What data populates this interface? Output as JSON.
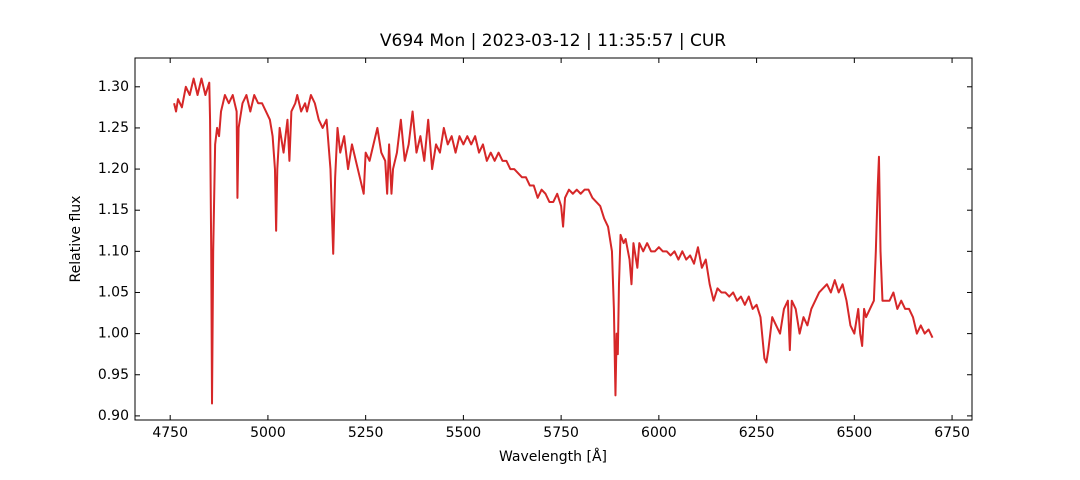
{
  "chart_data": {
    "type": "line",
    "title": "V694 Mon | 2023-03-12 | 11:35:57 | CUR",
    "xlabel": "Wavelength [Å]",
    "ylabel": "Relative flux",
    "color": "#d62728",
    "xlim": [
      4660,
      6801
    ],
    "ylim": [
      0.895,
      1.335
    ],
    "xticks": [
      4750,
      5000,
      5250,
      5500,
      5750,
      6000,
      6250,
      6500,
      6750
    ],
    "yticks": [
      {
        "value": 0.9,
        "label": "0.90"
      },
      0.95,
      {
        "value": 1.0,
        "label": "1.00"
      },
      1.05,
      {
        "value": 1.1,
        "label": "1.10"
      },
      1.15,
      {
        "value": 1.2,
        "label": "1.20"
      },
      1.25,
      {
        "value": 1.3,
        "label": "1.30"
      }
    ],
    "x": [
      4760,
      4765,
      4770,
      4780,
      4790,
      4800,
      4810,
      4820,
      4830,
      4840,
      4850,
      4852,
      4855,
      4857,
      4860,
      4865,
      4870,
      4875,
      4880,
      4890,
      4900,
      4910,
      4920,
      4922,
      4925,
      4935,
      4945,
      4955,
      4965,
      4975,
      4985,
      4995,
      5005,
      5012,
      5018,
      5021,
      5024,
      5030,
      5040,
      5050,
      5055,
      5060,
      5070,
      5075,
      5085,
      5095,
      5100,
      5110,
      5120,
      5130,
      5140,
      5150,
      5160,
      5167,
      5172,
      5178,
      5185,
      5195,
      5205,
      5215,
      5225,
      5235,
      5245,
      5250,
      5260,
      5270,
      5280,
      5290,
      5300,
      5305,
      5310,
      5316,
      5320,
      5330,
      5340,
      5350,
      5360,
      5370,
      5380,
      5390,
      5400,
      5410,
      5420,
      5430,
      5440,
      5450,
      5460,
      5470,
      5480,
      5490,
      5500,
      5510,
      5520,
      5530,
      5540,
      5550,
      5560,
      5570,
      5580,
      5590,
      5600,
      5610,
      5620,
      5630,
      5640,
      5650,
      5660,
      5670,
      5680,
      5690,
      5700,
      5710,
      5720,
      5730,
      5740,
      5750,
      5755,
      5760,
      5770,
      5780,
      5790,
      5800,
      5810,
      5820,
      5830,
      5840,
      5850,
      5860,
      5870,
      5880,
      5885,
      5889,
      5892,
      5895,
      5898,
      5902,
      5910,
      5915,
      5925,
      5930,
      5935,
      5945,
      5950,
      5960,
      5970,
      5980,
      5990,
      6000,
      6010,
      6020,
      6030,
      6040,
      6050,
      6060,
      6070,
      6080,
      6090,
      6100,
      6110,
      6120,
      6130,
      6140,
      6150,
      6160,
      6170,
      6180,
      6190,
      6200,
      6210,
      6220,
      6230,
      6240,
      6250,
      6260,
      6270,
      6275,
      6280,
      6290,
      6300,
      6310,
      6320,
      6330,
      6335,
      6340,
      6350,
      6360,
      6370,
      6380,
      6390,
      6400,
      6410,
      6420,
      6430,
      6440,
      6450,
      6460,
      6470,
      6480,
      6490,
      6500,
      6510,
      6515,
      6520,
      6525,
      6530,
      6540,
      6550,
      6555,
      6560,
      6563,
      6567,
      6572,
      6580,
      6590,
      6600,
      6610,
      6620,
      6630,
      6640,
      6650,
      6660,
      6670,
      6680,
      6690,
      6700
    ],
    "values": [
      1.28,
      1.27,
      1.285,
      1.275,
      1.3,
      1.29,
      1.31,
      1.29,
      1.31,
      1.29,
      1.305,
      1.26,
      1.1,
      0.915,
      1.1,
      1.23,
      1.25,
      1.24,
      1.27,
      1.29,
      1.28,
      1.29,
      1.27,
      1.165,
      1.25,
      1.28,
      1.29,
      1.27,
      1.29,
      1.28,
      1.28,
      1.27,
      1.26,
      1.24,
      1.2,
      1.125,
      1.2,
      1.25,
      1.22,
      1.26,
      1.21,
      1.27,
      1.28,
      1.29,
      1.27,
      1.28,
      1.27,
      1.29,
      1.28,
      1.26,
      1.25,
      1.26,
      1.2,
      1.097,
      1.19,
      1.25,
      1.22,
      1.24,
      1.2,
      1.23,
      1.21,
      1.19,
      1.17,
      1.22,
      1.21,
      1.23,
      1.25,
      1.22,
      1.21,
      1.17,
      1.23,
      1.17,
      1.2,
      1.22,
      1.26,
      1.21,
      1.23,
      1.27,
      1.22,
      1.24,
      1.21,
      1.26,
      1.2,
      1.23,
      1.22,
      1.25,
      1.23,
      1.24,
      1.22,
      1.24,
      1.23,
      1.24,
      1.23,
      1.24,
      1.22,
      1.23,
      1.21,
      1.22,
      1.21,
      1.22,
      1.21,
      1.21,
      1.2,
      1.2,
      1.195,
      1.19,
      1.19,
      1.18,
      1.18,
      1.165,
      1.175,
      1.17,
      1.16,
      1.16,
      1.17,
      1.155,
      1.13,
      1.165,
      1.175,
      1.17,
      1.175,
      1.17,
      1.175,
      1.175,
      1.165,
      1.16,
      1.155,
      1.14,
      1.13,
      1.1,
      1.03,
      0.925,
      1.0,
      0.975,
      1.06,
      1.12,
      1.11,
      1.115,
      1.09,
      1.06,
      1.11,
      1.08,
      1.11,
      1.1,
      1.11,
      1.1,
      1.1,
      1.105,
      1.1,
      1.1,
      1.095,
      1.1,
      1.09,
      1.1,
      1.09,
      1.095,
      1.085,
      1.105,
      1.08,
      1.09,
      1.06,
      1.04,
      1.055,
      1.05,
      1.05,
      1.045,
      1.05,
      1.04,
      1.045,
      1.035,
      1.045,
      1.03,
      1.035,
      1.02,
      0.97,
      0.965,
      0.98,
      1.02,
      1.01,
      1.0,
      1.03,
      1.04,
      0.98,
      1.04,
      1.03,
      1.0,
      1.02,
      1.01,
      1.03,
      1.04,
      1.05,
      1.055,
      1.06,
      1.05,
      1.065,
      1.05,
      1.06,
      1.04,
      1.01,
      1.0,
      1.03,
      1.0,
      0.985,
      1.03,
      1.02,
      1.03,
      1.04,
      1.1,
      1.18,
      1.215,
      1.1,
      1.04,
      1.04,
      1.04,
      1.05,
      1.03,
      1.04,
      1.03,
      1.03,
      1.02,
      1.0,
      1.01,
      1.0,
      1.005,
      0.995
    ]
  }
}
